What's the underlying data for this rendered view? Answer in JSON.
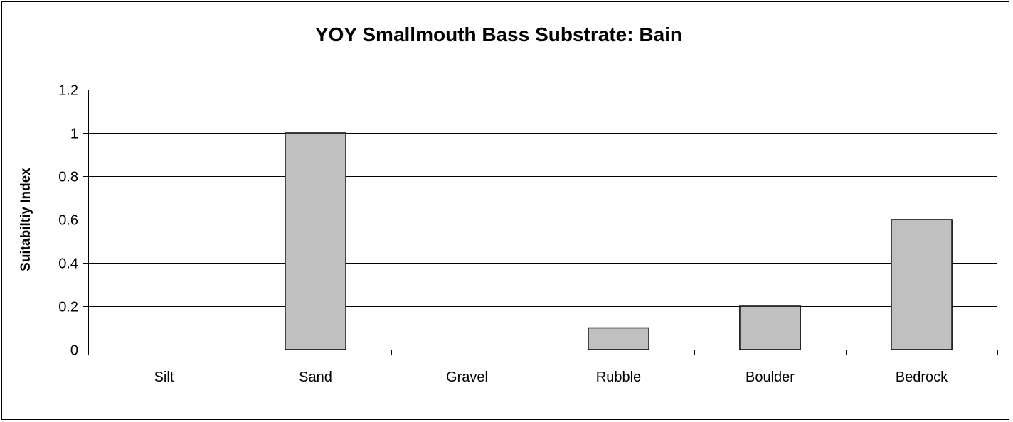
{
  "chart_data": {
    "type": "bar",
    "title": "YOY Smallmouth Bass Substrate: Bain",
    "xlabel": "",
    "ylabel": "Suitabiltiy Index",
    "categories": [
      "Silt",
      "Sand",
      "Gravel",
      "Rubble",
      "Boulder",
      "Bedrock"
    ],
    "values": [
      0,
      1,
      0,
      0.1,
      0.2,
      0.6
    ],
    "ylim": [
      0,
      1.2
    ],
    "yticks": [
      "0",
      "0.2",
      "0.4",
      "0.6",
      "0.8",
      "1",
      "1.2"
    ],
    "grid": true,
    "legend": "none",
    "colors": {
      "bar": "#c0c0c0",
      "bar_edge": "#000000",
      "grid": "#000000",
      "background": "#ffffff"
    }
  }
}
